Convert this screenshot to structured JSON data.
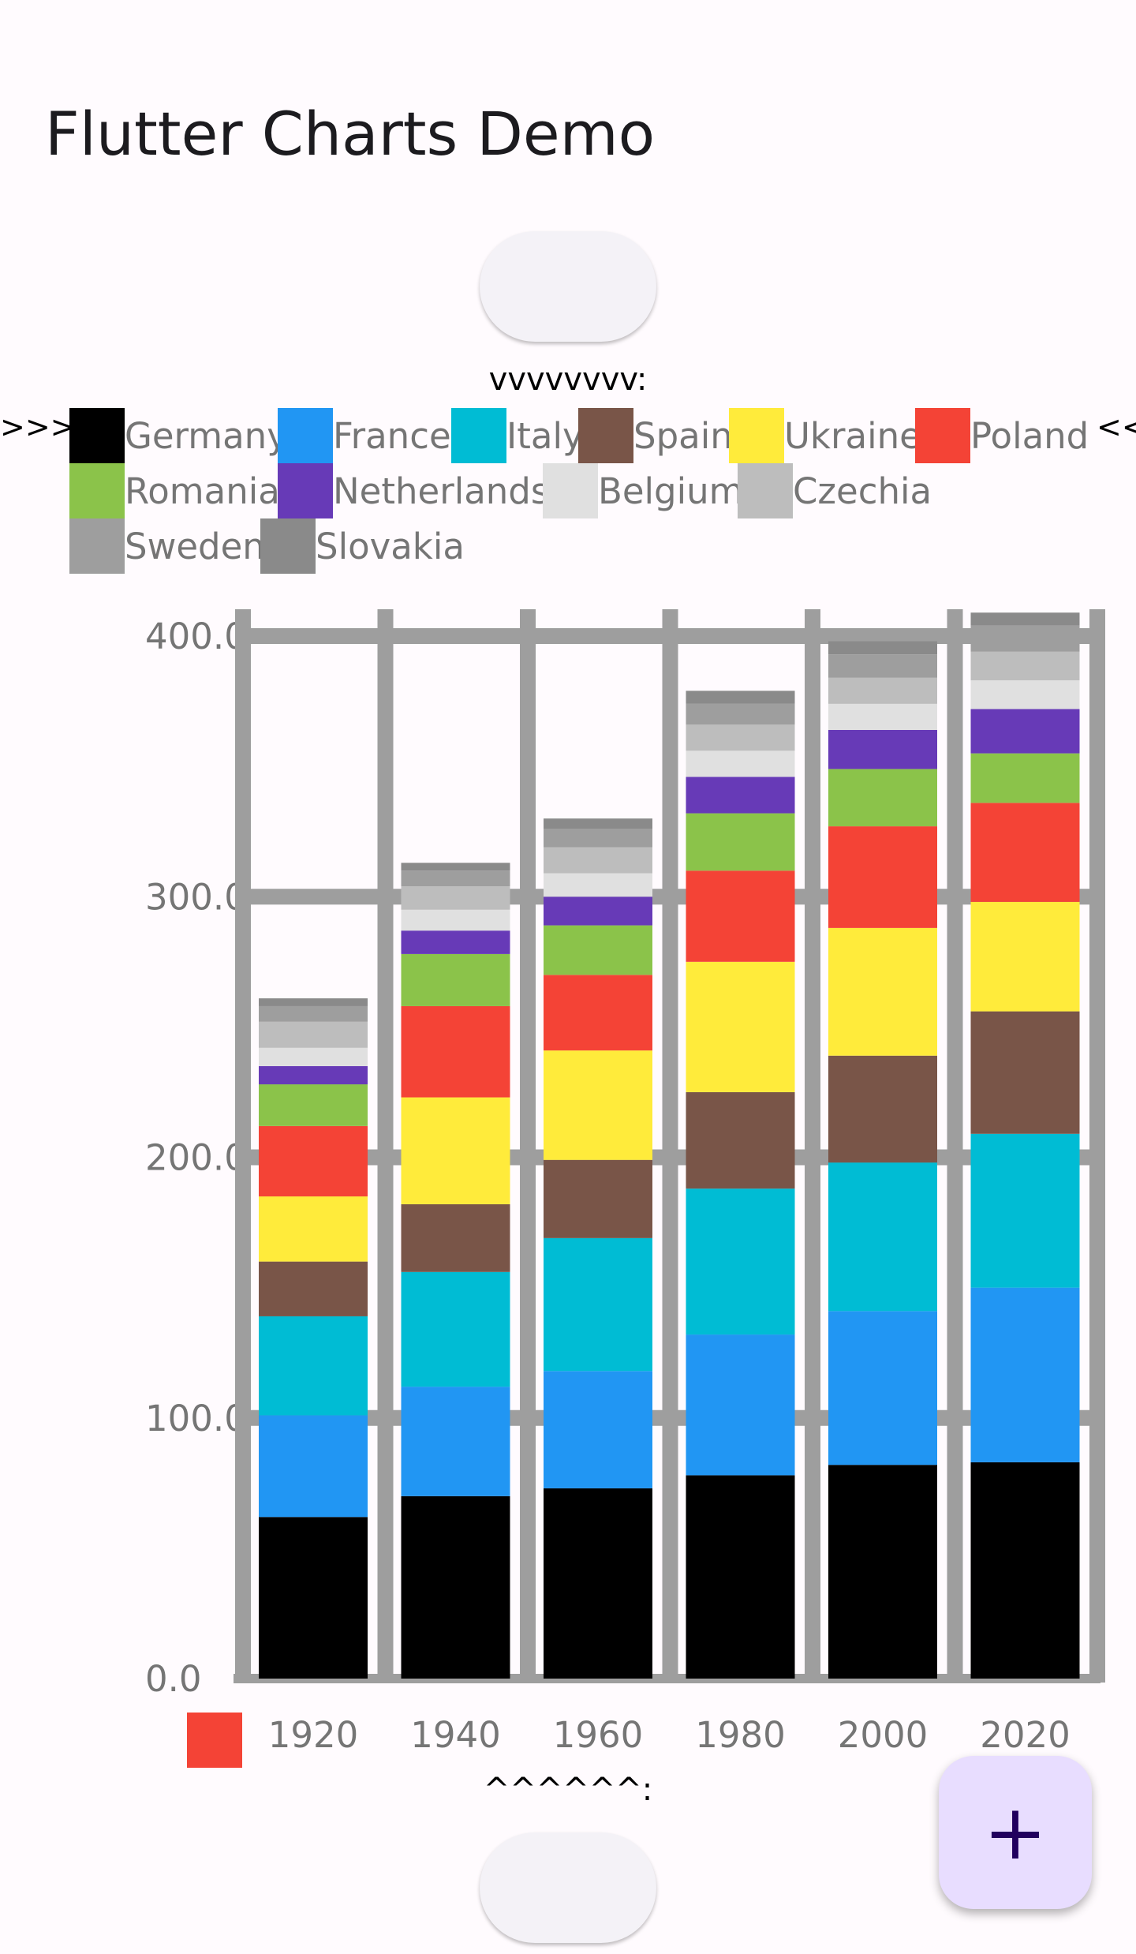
{
  "app": {
    "title": "Flutter Charts Demo"
  },
  "markers": {
    "top": "vvvvvvvv:",
    "bottom": "^^^^^^:",
    "legend_left": ">>>",
    "legend_right": "<<"
  },
  "fab": {
    "label": "+"
  },
  "chart_data": {
    "type": "bar",
    "stacked": true,
    "categories": [
      "1920",
      "1940",
      "1960",
      "1980",
      "2000",
      "2020"
    ],
    "ylim": [
      0,
      400
    ],
    "yticks": [
      "0.0",
      "100.0",
      "200.0",
      "300.0",
      "400.0"
    ],
    "grid": true,
    "series": [
      {
        "name": "Germany",
        "color": "#000000",
        "values": [
          62,
          70,
          73,
          78,
          82,
          83
        ]
      },
      {
        "name": "France",
        "color": "#2196f3",
        "values": [
          39,
          42,
          45,
          54,
          59,
          67
        ]
      },
      {
        "name": "Italy",
        "color": "#00bcd4",
        "values": [
          38,
          44,
          51,
          56,
          57,
          59
        ]
      },
      {
        "name": "Spain",
        "color": "#795548",
        "values": [
          21,
          26,
          30,
          37,
          41,
          47
        ]
      },
      {
        "name": "Ukraine",
        "color": "#ffeb3b",
        "values": [
          25,
          41,
          42,
          50,
          49,
          42
        ]
      },
      {
        "name": "Poland",
        "color": "#f44336",
        "values": [
          27,
          35,
          29,
          35,
          39,
          38
        ]
      },
      {
        "name": "Romania",
        "color": "#8bc34a",
        "values": [
          16,
          20,
          19,
          22,
          22,
          19
        ]
      },
      {
        "name": "Netherlands",
        "color": "#673ab7",
        "values": [
          7,
          9,
          11,
          14,
          15,
          17
        ]
      },
      {
        "name": "Belgium",
        "color": "#e0e0e0",
        "values": [
          7,
          8,
          9,
          10,
          10,
          11
        ]
      },
      {
        "name": "Czechia",
        "color": "#bdbdbd",
        "values": [
          10,
          9,
          10,
          10,
          10,
          11
        ]
      },
      {
        "name": "Sweden",
        "color": "#9e9e9e",
        "values": [
          6,
          6,
          7,
          8,
          9,
          10
        ]
      },
      {
        "name": "Slovakia",
        "color": "#8a8a8a",
        "values": [
          3,
          3,
          4,
          5,
          5,
          5
        ]
      }
    ],
    "extra_legend_color": "#f44336"
  }
}
